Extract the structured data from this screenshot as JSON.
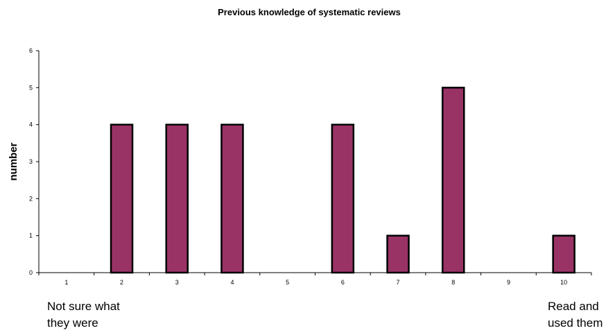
{
  "chart_data": {
    "type": "bar",
    "title": "Previous knowledge of systematic reviews",
    "xlabel": "",
    "ylabel": "number",
    "categories": [
      "1",
      "2",
      "3",
      "4",
      "5",
      "6",
      "7",
      "8",
      "9",
      "10"
    ],
    "values": [
      0,
      4,
      4,
      4,
      0,
      4,
      1,
      5,
      0,
      1
    ],
    "ylim": [
      0,
      6
    ],
    "yticks": [
      "0",
      "1",
      "2",
      "3",
      "4",
      "5",
      "6"
    ],
    "grid": false,
    "legend": "none",
    "bar_color": "#993366",
    "annotations": {
      "left_line1": "Not sure what",
      "left_line2": "they were",
      "right_line1": "Read and",
      "right_line2": "used them"
    }
  }
}
